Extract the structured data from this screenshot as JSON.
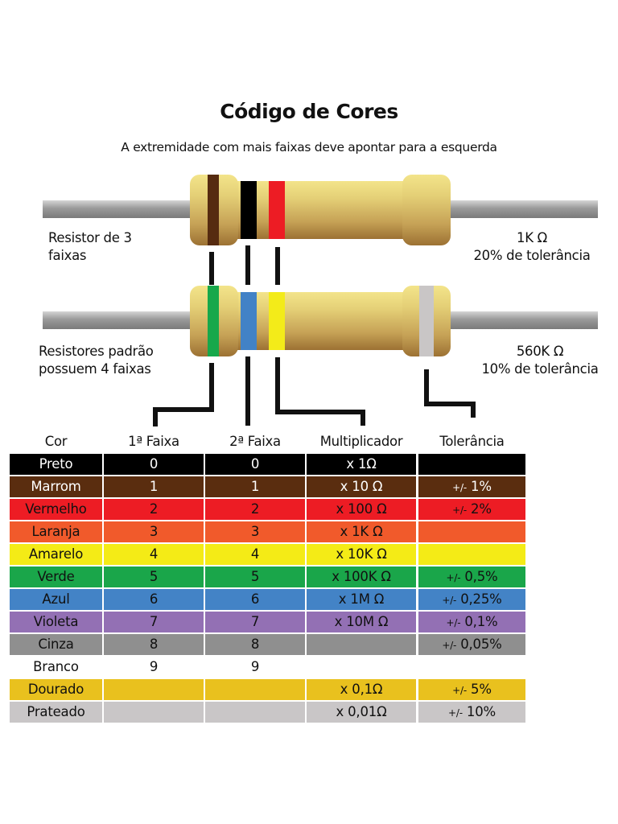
{
  "title": "Código de Cores",
  "subtitle": "A extremidade com mais faixas deve apontar para a esquerda",
  "resistor_3": {
    "label_line1": "Resistor de 3",
    "label_line2": "faixas",
    "value": "1K Ω",
    "tolerance": "20% de tolerância",
    "bands": [
      "#562b10",
      "#000000",
      "#ed1c24"
    ]
  },
  "resistor_4": {
    "label_line1": "Resistores padrão",
    "label_line2": "possuem 4 faixas",
    "value": "560K Ω",
    "tolerance": "10% de tolerância",
    "bands": [
      "#17a84b",
      "#4282c6",
      "#f3eb19",
      "#c9c6c6"
    ]
  },
  "table": {
    "headers": {
      "cor": "Cor",
      "faixa1": "1ª Faixa",
      "faixa2": "2ª Faixa",
      "multiplicador": "Multiplicador",
      "tolerancia": "Tolerância"
    },
    "rows": [
      {
        "cor": "Preto",
        "f1": "0",
        "f2": "0",
        "mult": "x 1Ω",
        "tol_prefix": "",
        "tol": "",
        "bg": "#000000",
        "fg": "#ffffff"
      },
      {
        "cor": "Marrom",
        "f1": "1",
        "f2": "1",
        "mult": "x 10 Ω",
        "tol_prefix": "+/-",
        "tol": "1%",
        "bg": "#5a2d0f",
        "fg": "#ffffff"
      },
      {
        "cor": "Vermelho",
        "f1": "2",
        "f2": "2",
        "mult": "x 100 Ω",
        "tol_prefix": "+/-",
        "tol": "2%",
        "bg": "#ed1c24",
        "fg": "#111111"
      },
      {
        "cor": "Laranja",
        "f1": "3",
        "f2": "3",
        "mult": "x 1K Ω",
        "tol_prefix": "",
        "tol": "",
        "bg": "#f15a2b",
        "fg": "#111111"
      },
      {
        "cor": "Amarelo",
        "f1": "4",
        "f2": "4",
        "mult": "x 10K Ω",
        "tol_prefix": "",
        "tol": "",
        "bg": "#f4eb16",
        "fg": "#111111"
      },
      {
        "cor": "Verde",
        "f1": "5",
        "f2": "5",
        "mult": "x 100K Ω",
        "tol_prefix": "+/-",
        "tol": "0,5%",
        "bg": "#1aa64a",
        "fg": "#111111"
      },
      {
        "cor": "Azul",
        "f1": "6",
        "f2": "6",
        "mult": "x 1M Ω",
        "tol_prefix": "+/-",
        "tol": "0,25%",
        "bg": "#4383c6",
        "fg": "#111111"
      },
      {
        "cor": "Violeta",
        "f1": "7",
        "f2": "7",
        "mult": "x 10M Ω",
        "tol_prefix": "+/-",
        "tol": "0,1%",
        "bg": "#9370b4",
        "fg": "#111111"
      },
      {
        "cor": "Cinza",
        "f1": "8",
        "f2": "8",
        "mult": "",
        "tol_prefix": "+/-",
        "tol": "0,05%",
        "bg": "#8f8f8f",
        "fg": "#111111"
      },
      {
        "cor": "Branco",
        "f1": "9",
        "f2": "9",
        "mult": "",
        "tol_prefix": "",
        "tol": "",
        "bg": "#ffffff",
        "fg": "#111111"
      },
      {
        "cor": "Dourado",
        "f1": "",
        "f2": "",
        "mult": "x 0,1Ω",
        "tol_prefix": "+/-",
        "tol": "5%",
        "bg": "#e9c11e",
        "fg": "#111111"
      },
      {
        "cor": "Prateado",
        "f1": "",
        "f2": "",
        "mult": "x 0,01Ω",
        "tol_prefix": "+/-",
        "tol": "10%",
        "bg": "#c9c6c7",
        "fg": "#111111"
      }
    ]
  }
}
